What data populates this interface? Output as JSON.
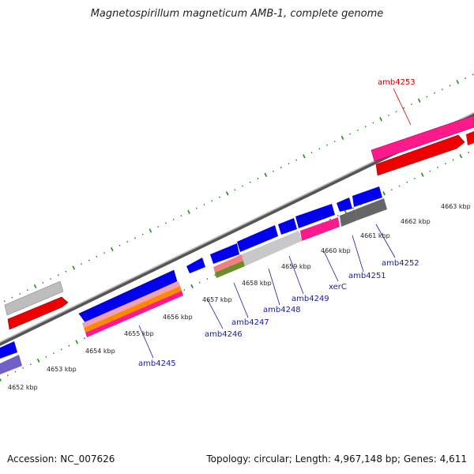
{
  "title": "Magnetospirillum magneticum AMB-1, complete genome",
  "footer": {
    "accession": "Accession: NC_007626",
    "summary": "Topology: circular; Length: 4,967,148 bp; Genes: 4,611"
  },
  "colors": {
    "backbone": "#808080",
    "tick": "#1e8c1e",
    "forward_cds": "#ff1a8c",
    "reverse_red": "#ee0000",
    "cds_blue": "#0000ee",
    "gray": "#bbbbbb",
    "dark_gray": "#666666",
    "label_blue": "#1a1aa0",
    "label_red": "#cc0000"
  },
  "kbp_labels": [
    "4652 kbp",
    "4653 kbp",
    "4654 kbp",
    "4655 kbp",
    "4656 kbp",
    "4657 kbp",
    "4658 kbp",
    "4659 kbp",
    "4660 kbp",
    "4661 kbp",
    "4662 kbp",
    "4663 kbp"
  ],
  "gene_labels": [
    "amb4253",
    "amb4245",
    "amb4246",
    "amb4247",
    "amb4248",
    "amb4249",
    "xerC",
    "amb4251",
    "amb4252"
  ]
}
